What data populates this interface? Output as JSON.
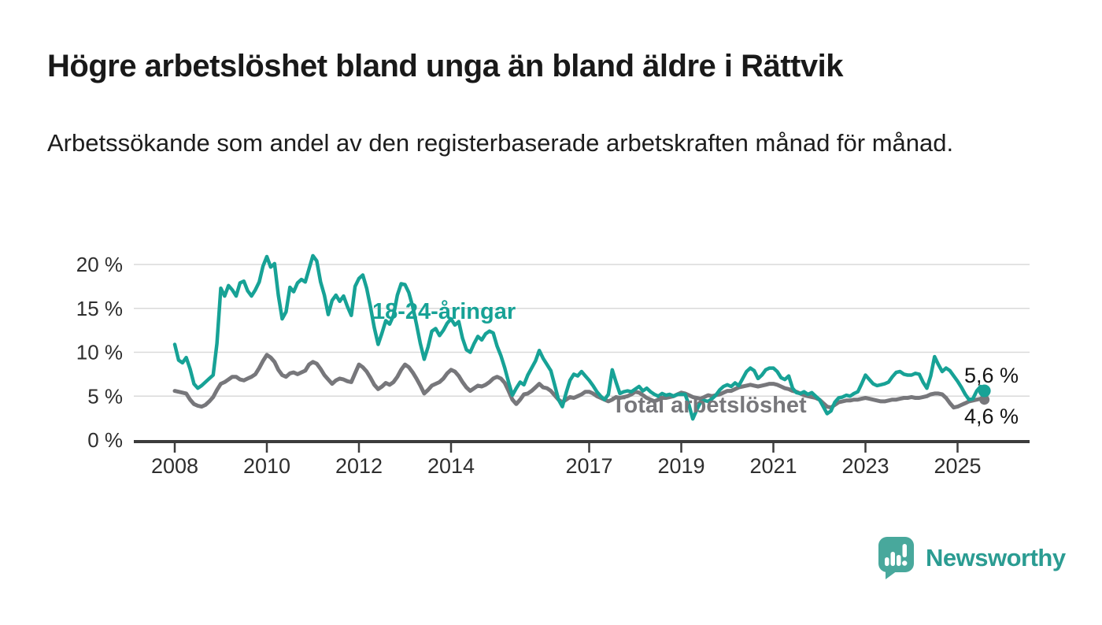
{
  "header": {
    "title": "Högre arbetslöshet bland unga än bland äldre i Rättvik",
    "subtitle": "Arbetssökande som andel av den registerbaserade arbetskraften månad för månad."
  },
  "colors": {
    "youth_line": "#17a296",
    "total_line": "#77777b",
    "axis": "#3c3c3c",
    "gridline": "#dadada",
    "text": "#191919",
    "brand_teal": "#2b9c92",
    "logo_bubble": "#48a89c"
  },
  "chart_data": {
    "type": "line",
    "unit": "%",
    "frequency": "monthly",
    "x_start": "2008-01",
    "x_end": "2025-08",
    "ylim": [
      0,
      22
    ],
    "grid": "horizontal",
    "y_ticks": [
      {
        "value": 0,
        "label": "0 %"
      },
      {
        "value": 5,
        "label": "5 %"
      },
      {
        "value": 10,
        "label": "10 %"
      },
      {
        "value": 15,
        "label": "15 %"
      },
      {
        "value": 20,
        "label": "20 %"
      }
    ],
    "x_ticks": [
      {
        "year": 2008,
        "label": "2008"
      },
      {
        "year": 2010,
        "label": "2010"
      },
      {
        "year": 2012,
        "label": "2012"
      },
      {
        "year": 2014,
        "label": "2014"
      },
      {
        "year": 2017,
        "label": "2017"
      },
      {
        "year": 2019,
        "label": "2019"
      },
      {
        "year": 2021,
        "label": "2021"
      },
      {
        "year": 2023,
        "label": "2023"
      },
      {
        "year": 2025,
        "label": "2025"
      }
    ],
    "series": [
      {
        "name": "Total arbetslöshet",
        "color": "#77777b",
        "end_value": 4.6,
        "end_label": "4,6 %",
        "values": [
          5.6,
          5.5,
          5.4,
          5.3,
          4.6,
          4.1,
          3.9,
          3.8,
          4.0,
          4.4,
          4.9,
          5.7,
          6.4,
          6.6,
          6.9,
          7.2,
          7.2,
          6.9,
          6.8,
          7.0,
          7.2,
          7.5,
          8.2,
          9.0,
          9.7,
          9.4,
          8.9,
          8.0,
          7.4,
          7.2,
          7.6,
          7.7,
          7.5,
          7.7,
          7.9,
          8.6,
          8.9,
          8.7,
          8.1,
          7.4,
          6.9,
          6.4,
          6.8,
          7.0,
          6.9,
          6.7,
          6.6,
          7.6,
          8.6,
          8.3,
          7.8,
          7.1,
          6.3,
          5.8,
          6.1,
          6.5,
          6.3,
          6.6,
          7.2,
          8.0,
          8.6,
          8.3,
          7.7,
          7.0,
          6.2,
          5.3,
          5.7,
          6.2,
          6.4,
          6.6,
          7.0,
          7.6,
          8.0,
          7.8,
          7.3,
          6.6,
          6.0,
          5.6,
          5.9,
          6.2,
          6.1,
          6.3,
          6.6,
          7.0,
          7.2,
          7.0,
          6.5,
          5.6,
          4.6,
          4.1,
          4.6,
          5.2,
          5.3,
          5.6,
          6.0,
          6.4,
          6.0,
          5.9,
          5.6,
          5.1,
          4.6,
          4.3,
          4.6,
          4.9,
          4.8,
          5.0,
          5.2,
          5.5,
          5.5,
          5.3,
          5.0,
          4.8,
          4.6,
          4.4,
          4.6,
          4.9,
          4.8,
          4.9,
          5.0,
          5.2,
          5.5,
          5.4,
          5.1,
          4.8,
          4.6,
          4.4,
          4.6,
          4.8,
          4.8,
          4.9,
          5.0,
          5.2,
          5.4,
          5.3,
          5.1,
          4.9,
          4.8,
          4.7,
          4.9,
          5.1,
          5.0,
          5.1,
          5.2,
          5.4,
          5.6,
          5.6,
          5.8,
          6.0,
          6.1,
          6.2,
          6.3,
          6.2,
          6.1,
          6.2,
          6.3,
          6.4,
          6.4,
          6.3,
          6.1,
          5.9,
          5.8,
          5.6,
          5.5,
          5.3,
          5.1,
          5.0,
          4.9,
          4.8,
          4.6,
          4.2,
          3.8,
          3.7,
          4.0,
          4.3,
          4.4,
          4.5,
          4.5,
          4.6,
          4.6,
          4.7,
          4.8,
          4.7,
          4.6,
          4.5,
          4.4,
          4.4,
          4.5,
          4.6,
          4.6,
          4.7,
          4.8,
          4.8,
          4.9,
          4.8,
          4.8,
          4.9,
          5.0,
          5.2,
          5.3,
          5.3,
          5.2,
          4.8,
          4.2,
          3.7,
          3.8,
          4.0,
          4.2,
          4.4,
          4.5,
          4.6,
          4.7,
          4.6
        ]
      },
      {
        "name": "18-24-åringar",
        "color": "#17a296",
        "end_value": 5.6,
        "end_label": "5,6 %",
        "values": [
          10.9,
          9.1,
          8.8,
          9.4,
          8.1,
          6.4,
          5.9,
          6.2,
          6.6,
          7.0,
          7.4,
          11.0,
          17.3,
          16.4,
          17.6,
          17.1,
          16.4,
          17.9,
          18.1,
          17.0,
          16.4,
          17.1,
          18.0,
          19.8,
          20.9,
          19.7,
          20.1,
          16.5,
          13.8,
          14.6,
          17.4,
          16.9,
          17.9,
          18.3,
          18.0,
          19.5,
          21.0,
          20.4,
          18.0,
          16.5,
          14.3,
          15.9,
          16.5,
          15.8,
          16.4,
          15.2,
          14.2,
          17.5,
          18.4,
          18.8,
          17.3,
          15.2,
          12.8,
          10.9,
          12.2,
          13.6,
          13.2,
          14.2,
          16.5,
          17.8,
          17.7,
          16.8,
          15.2,
          13.2,
          11.0,
          9.2,
          10.6,
          12.4,
          12.7,
          11.9,
          12.5,
          13.3,
          13.8,
          13.1,
          13.5,
          11.6,
          10.3,
          10.0,
          11.0,
          11.8,
          11.4,
          12.1,
          12.4,
          12.2,
          10.7,
          9.6,
          8.2,
          6.6,
          5.1,
          5.9,
          6.6,
          6.3,
          7.4,
          8.2,
          9.0,
          10.2,
          9.3,
          8.6,
          7.9,
          6.3,
          4.6,
          3.8,
          5.4,
          6.8,
          7.5,
          7.3,
          7.8,
          7.3,
          6.8,
          6.2,
          5.5,
          5.0,
          4.6,
          5.2,
          8.0,
          6.6,
          5.3,
          5.5,
          5.6,
          5.5,
          5.8,
          6.1,
          5.6,
          5.9,
          5.5,
          5.2,
          5.0,
          5.3,
          5.1,
          5.2,
          5.0,
          5.2,
          5.2,
          5.2,
          4.0,
          2.4,
          3.4,
          4.3,
          4.5,
          4.4,
          4.7,
          5.1,
          5.7,
          6.1,
          6.3,
          6.1,
          6.5,
          6.2,
          7.0,
          7.8,
          8.2,
          7.9,
          7.0,
          7.4,
          8.0,
          8.2,
          8.2,
          7.8,
          7.1,
          6.9,
          7.3,
          5.9,
          5.4,
          5.3,
          5.5,
          5.2,
          5.4,
          5.0,
          4.6,
          3.8,
          3.0,
          3.3,
          4.3,
          4.8,
          4.9,
          5.1,
          5.0,
          5.3,
          5.5,
          6.4,
          7.4,
          6.9,
          6.4,
          6.2,
          6.3,
          6.4,
          6.6,
          7.2,
          7.7,
          7.8,
          7.5,
          7.4,
          7.4,
          7.6,
          7.5,
          6.6,
          5.9,
          7.3,
          9.5,
          8.6,
          7.8,
          8.2,
          7.9,
          7.3,
          6.7,
          6.0,
          5.2,
          4.6,
          4.7,
          5.6,
          6.1,
          5.6
        ]
      }
    ]
  },
  "footer": {
    "brand": "Newsworthy",
    "logo_icon": "bar-chart-speech-bubble"
  }
}
